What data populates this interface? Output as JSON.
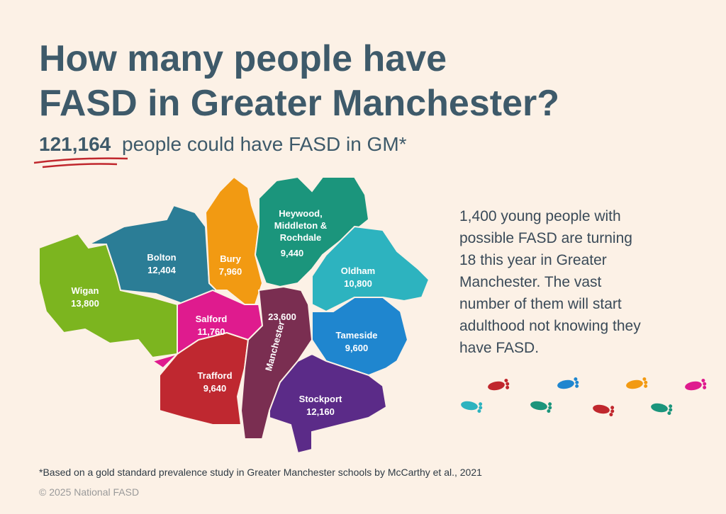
{
  "header": {
    "title_line1": "How many people have",
    "title_line2": "FASD in Greater Manchester?",
    "highlight": "121,164",
    "subtitle": "people could have FASD in GM*"
  },
  "map": {
    "regions": [
      {
        "name": "Wigan",
        "value": "13,800",
        "color": "#7cb51f"
      },
      {
        "name": "Bolton",
        "value": "12,404",
        "color": "#2b7d96"
      },
      {
        "name": "Bury",
        "value": "7,960",
        "color": "#f29a12"
      },
      {
        "name": "Heywood, Middleton & Rochdale",
        "value": "9,440",
        "color": "#1b957c"
      },
      {
        "name": "Oldham",
        "value": "10,800",
        "color": "#2db3bf"
      },
      {
        "name": "Tameside",
        "value": "9,600",
        "color": "#1f86cf"
      },
      {
        "name": "Salford",
        "value": "11,760",
        "color": "#df1b8e"
      },
      {
        "name": "Trafford",
        "value": "9,640",
        "color": "#bf2830"
      },
      {
        "name": "Manchester",
        "value": "23,600",
        "color": "#7a2e51"
      },
      {
        "name": "Stockport",
        "value": "12,160",
        "color": "#5b2b88"
      }
    ]
  },
  "side_text": [
    "1,400 young people with",
    "possible FASD are turning",
    "18 this year in Greater",
    "Manchester.  The vast",
    "number of them will start",
    "adulthood not knowing they",
    "have FASD."
  ],
  "footer": {
    "note": "*Based on a gold standard prevalence study in Greater Manchester schools by McCarthy et al., 2021",
    "copyright": "© 2025 National FASD"
  }
}
